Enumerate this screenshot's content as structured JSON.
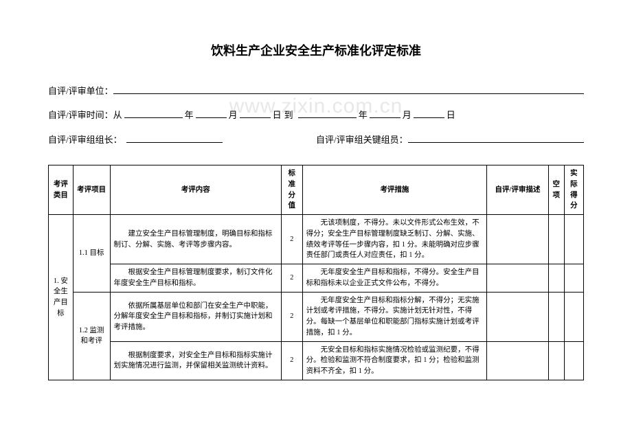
{
  "title": "饮料生产企业安全生产标准化评定标准",
  "watermark": "www.zixin.com.cn",
  "form": {
    "unit_label": "自评/评审单位：",
    "time_label": "自评/评审时间：从",
    "year1": "年",
    "month1": "月",
    "day1": "日",
    "to": "到",
    "year2": "年",
    "month2": "月",
    "day2": "日",
    "leader_label": "自评/评审组组长：",
    "members_label": "自评/评审组关键组员："
  },
  "headers": {
    "category": "考评类目",
    "item": "考评项目",
    "content": "考评内容",
    "std_score": "标准分值",
    "measure": "考评措施",
    "desc": "自评/评审描述",
    "empty_item": "空项",
    "actual": "实际得分"
  },
  "category1": "1. 安全生产目标",
  "item11": "1.1 目标",
  "item12": "1.2 监测和考评",
  "rows": [
    {
      "content": "建立安全生产目标管理制度，明确目标和指标制订、分解、实施、考评等步骤内容。",
      "score": "2",
      "measure": "无该项制度，不得分。未以文件形式公布生效，不得分；安全生产目标管理制度缺乏制订、分解、实施、绩效考评等任一步骤内容，扣 1 分。未能明确对应步骤责任部门或责任人对应责任，扣 1 分。"
    },
    {
      "content": "根据安全生产目标管理制度要求，制订文件化年度安全生产目标和指标。",
      "score": "2",
      "measure": "无年度安全生产目标和指标，不得分。安全生产目标和指标未以企业正式文件公布，不得分。"
    },
    {
      "content": "依据所属基层单位和部门在安全生产中职能，分解年度安全生产目标和指标，并制订实施计划和考评措施。",
      "score": "2",
      "measure": "无年度安全生产目标和指标分解，不得分；无实施计划或考评措施，不得分。实施计划无针对性，不得分。每缺一个基层单位和职能部门指标实施计划或考评措施，扣 1 分。"
    },
    {
      "content": "根据制度要求，对安全生产目标和指标实施计划实施情况进行监测，并保留相关监测统计资料。",
      "score": "2",
      "measure": "无安全目标和指标实施情况检验或监测纪要，不得分。检验和监测不符合制度要求，扣 1 分；检验和监测资料不齐全，扣 1 分。"
    }
  ]
}
